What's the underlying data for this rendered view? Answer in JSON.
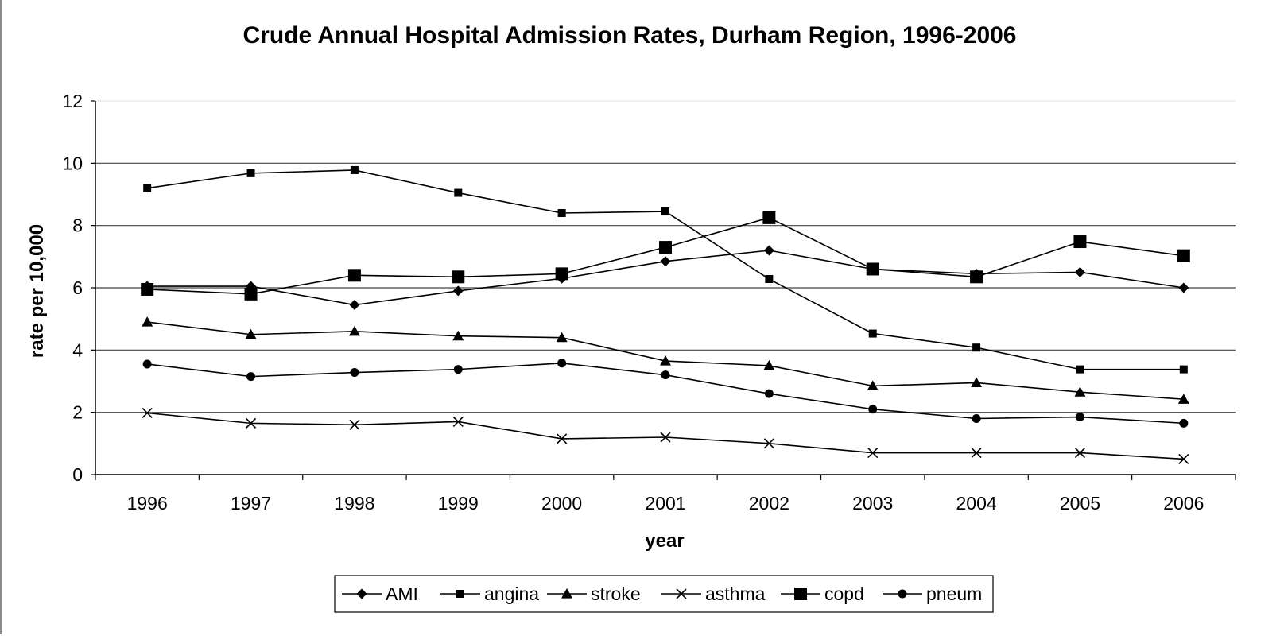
{
  "chart_data": {
    "type": "line",
    "title": "Crude Annual Hospital Admission Rates, Durham Region, 1996-2006",
    "xlabel": "year",
    "ylabel": "rate per 10,000",
    "categories": [
      "1996",
      "1997",
      "1998",
      "1999",
      "2000",
      "2001",
      "2002",
      "2003",
      "2004",
      "2005",
      "2006"
    ],
    "ylim": [
      0,
      12
    ],
    "yticks": [
      "0",
      "2",
      "4",
      "6",
      "8",
      "10",
      "12"
    ],
    "grid": "horizontal",
    "legend_position": "bottom",
    "series": [
      {
        "name": "AMI",
        "marker": "diamond",
        "values": [
          6.05,
          6.05,
          5.45,
          5.9,
          6.3,
          6.85,
          7.2,
          6.6,
          6.45,
          6.5,
          6.0
        ]
      },
      {
        "name": "angina",
        "marker": "square-small",
        "values": [
          9.2,
          9.68,
          9.78,
          9.05,
          8.4,
          8.45,
          6.28,
          4.53,
          4.08,
          3.38,
          3.38
        ]
      },
      {
        "name": "stroke",
        "marker": "triangle",
        "values": [
          4.9,
          4.5,
          4.6,
          4.45,
          4.4,
          3.65,
          3.5,
          2.85,
          2.95,
          2.65,
          2.42
        ]
      },
      {
        "name": "asthma",
        "marker": "cross",
        "values": [
          1.98,
          1.65,
          1.6,
          1.7,
          1.15,
          1.2,
          1.0,
          0.7,
          0.7,
          0.7,
          0.5
        ]
      },
      {
        "name": "copd",
        "marker": "square-large",
        "values": [
          5.95,
          5.8,
          6.4,
          6.35,
          6.45,
          7.3,
          8.25,
          6.6,
          6.35,
          7.48,
          7.03
        ]
      },
      {
        "name": "pneum",
        "marker": "circle",
        "values": [
          3.55,
          3.15,
          3.28,
          3.38,
          3.58,
          3.2,
          2.6,
          2.1,
          1.8,
          1.85,
          1.65
        ]
      }
    ]
  }
}
